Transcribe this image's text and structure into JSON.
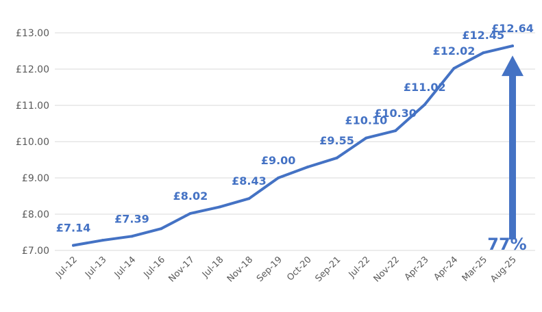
{
  "chart_data": {
    "type": "line",
    "categories": [
      "Jul-12",
      "Jul-13",
      "Jul-14",
      "Jul-16",
      "Nov-17",
      "Jul-18",
      "Nov-18",
      "Sep-19",
      "Oct-20",
      "Sep-21",
      "Jul-22",
      "Nov-22",
      "Apr-23",
      "Apr-24",
      "Mar-25",
      "Aug-25"
    ],
    "series": [
      {
        "name": "",
        "values": [
          7.14,
          7.28,
          7.39,
          7.6,
          8.02,
          8.2,
          8.43,
          9.0,
          9.3,
          9.55,
          10.1,
          10.3,
          11.02,
          12.02,
          12.45,
          12.64
        ]
      }
    ],
    "data_labels": [
      {
        "index": 0,
        "text": "£7.14"
      },
      {
        "index": 2,
        "text": "£7.39"
      },
      {
        "index": 4,
        "text": "£8.02"
      },
      {
        "index": 6,
        "text": "£8.43"
      },
      {
        "index": 7,
        "text": "£9.00"
      },
      {
        "index": 9,
        "text": "£9.55"
      },
      {
        "index": 10,
        "text": "£10.10"
      },
      {
        "index": 11,
        "text": "£10.30"
      },
      {
        "index": 12,
        "text": "£11.02"
      },
      {
        "index": 13,
        "text": "£12.02"
      },
      {
        "index": 14,
        "text": "£12.45"
      },
      {
        "index": 15,
        "text": "£12.64"
      }
    ],
    "y_ticks": [
      "£7.00",
      "£8.00",
      "£9.00",
      "£10.00",
      "£11.00",
      "£12.00",
      "£13.00"
    ],
    "ylim": [
      7,
      13
    ],
    "title": "",
    "xlabel": "",
    "ylabel": "",
    "grid": "horizontal",
    "legend": "none",
    "annotation": {
      "text": "77%",
      "arrow_from_value": 7.0,
      "arrow_to_value": 12.64,
      "at_index": 15
    },
    "colors": {
      "line": "#4472c4",
      "label": "#4472c4",
      "axis_text": "#595959",
      "grid": "#d9d9d9"
    }
  }
}
